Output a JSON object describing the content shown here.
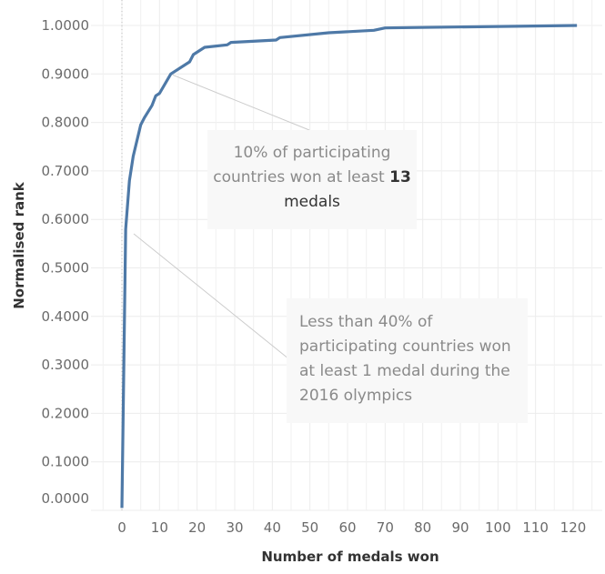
{
  "chart_data": {
    "type": "line",
    "title": "",
    "xlabel": "Number of medals won",
    "ylabel": "Normalised rank",
    "xlim": [
      -8,
      127
    ],
    "ylim": [
      0,
      1
    ],
    "grid": true,
    "x_ticks": [
      "0",
      "10",
      "20",
      "30",
      "40",
      "50",
      "60",
      "70",
      "80",
      "90",
      "100",
      "110",
      "120"
    ],
    "y_ticks": [
      "0.0000",
      "0.1000",
      "0.2000",
      "0.3000",
      "0.4000",
      "0.5000",
      "0.6000",
      "0.7000",
      "0.8000",
      "0.9000",
      "1.0000"
    ],
    "series": [
      {
        "name": "Normalised rank",
        "color": "#4e79a7",
        "x": [
          0,
          1,
          2,
          3,
          5,
          6,
          8,
          9,
          10,
          13,
          18,
          19,
          22,
          28,
          29,
          41,
          42,
          55,
          67,
          70,
          121
        ],
        "y": [
          0.005,
          0.58,
          0.68,
          0.73,
          0.795,
          0.81,
          0.835,
          0.855,
          0.86,
          0.9,
          0.925,
          0.94,
          0.955,
          0.96,
          0.965,
          0.97,
          0.975,
          0.985,
          0.99,
          0.995,
          1.0
        ]
      }
    ],
    "annotations": [
      {
        "text_before": "10% of participating countries won at least ",
        "bold": "13",
        "text_after": " medals",
        "x": 13,
        "y": 0.9
      },
      {
        "text": "Less than 40% of participating countries won at least 1 medal during the 2016 olympics",
        "x": 1,
        "y": 0.56
      }
    ]
  }
}
